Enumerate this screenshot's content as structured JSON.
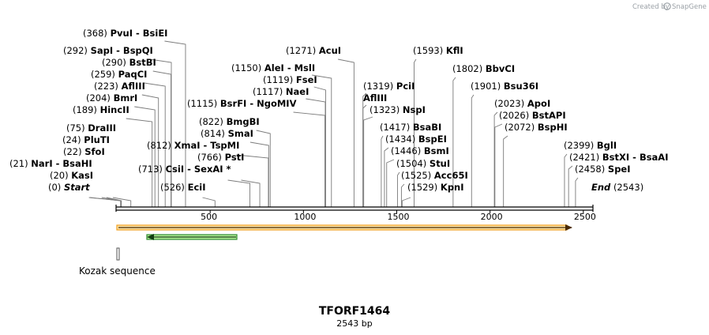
{
  "watermark": {
    "created_by": "Created by",
    "brand": "SnapGene"
  },
  "map": {
    "title": "TFORF1464",
    "length_label": "2543 bp",
    "length": 2543,
    "ticks": [
      {
        "label": "500",
        "value": 500
      },
      {
        "label": "1000",
        "value": 1000
      },
      {
        "label": "1500",
        "value": 1500
      },
      {
        "label": "2000",
        "value": 2000
      },
      {
        "label": "2500",
        "value": 2500
      }
    ]
  },
  "sites": [
    {
      "pos": "(0)",
      "names": "Start",
      "site": 0,
      "italic": true
    },
    {
      "pos": "(20)",
      "names": "KasI",
      "site": 20
    },
    {
      "pos": "(21)",
      "names": "NarI  -  BsaHI",
      "site": 21
    },
    {
      "pos": "(22)",
      "names": "SfoI",
      "site": 22
    },
    {
      "pos": "(24)",
      "names": "PluTI",
      "site": 24
    },
    {
      "pos": "(75)",
      "names": "DraIII",
      "site": 75
    },
    {
      "pos": "(189)",
      "names": "HincII",
      "site": 189
    },
    {
      "pos": "(204)",
      "names": "BmrI",
      "site": 204
    },
    {
      "pos": "(223)",
      "names": "AflIII",
      "site": 223
    },
    {
      "pos": "(259)",
      "names": "PaqCI",
      "site": 259
    },
    {
      "pos": "(290)",
      "names": "BstBI",
      "site": 290
    },
    {
      "pos": "(292)",
      "names": "SapI  -  BspQI",
      "site": 292
    },
    {
      "pos": "(368)",
      "names": "PvuI  -  BsiEI",
      "site": 368
    },
    {
      "pos": "(526)",
      "names": "EciI",
      "site": 526
    },
    {
      "pos": "(713)",
      "names": "CsiI  -  SexAI *",
      "site": 713
    },
    {
      "pos": "(766)",
      "names": "PstI",
      "site": 766
    },
    {
      "pos": "(812)",
      "names": "XmaI  -  TspMI",
      "site": 812
    },
    {
      "pos": "(814)",
      "names": "SmaI",
      "site": 814
    },
    {
      "pos": "(822)",
      "names": "BmgBI",
      "site": 822
    },
    {
      "pos": "(1115)",
      "names": "BsrFI  -  NgoMIV",
      "site": 1115
    },
    {
      "pos": "(1117)",
      "names": "NaeI",
      "site": 1117
    },
    {
      "pos": "(1119)",
      "names": "FseI",
      "site": 1119
    },
    {
      "pos": "(1150)",
      "names": "AleI  -  MslI",
      "site": 1150
    },
    {
      "pos": "(1271)",
      "names": "AcuI",
      "site": 1271
    },
    {
      "pos": "(1319)",
      "names": "PciI",
      "site": 1319
    },
    {
      "pos": "",
      "names": "AflIII",
      "site": 1319
    },
    {
      "pos": "(1323)",
      "names": "NspI",
      "site": 1323
    },
    {
      "pos": "(1417)",
      "names": "BsaBI",
      "site": 1417
    },
    {
      "pos": "(1434)",
      "names": "BspEI",
      "site": 1434
    },
    {
      "pos": "(1446)",
      "names": "BsmI",
      "site": 1446
    },
    {
      "pos": "(1504)",
      "names": "StuI",
      "site": 1504
    },
    {
      "pos": "(1525)",
      "names": "Acc65I",
      "site": 1525
    },
    {
      "pos": "(1529)",
      "names": "KpnI",
      "site": 1529
    },
    {
      "pos": "(1593)",
      "names": "KflI",
      "site": 1593
    },
    {
      "pos": "(1802)",
      "names": "BbvCI",
      "site": 1802
    },
    {
      "pos": "(1901)",
      "names": "Bsu36I",
      "site": 1901
    },
    {
      "pos": "(2023)",
      "names": "ApoI",
      "site": 2023
    },
    {
      "pos": "(2026)",
      "names": "BstAPI",
      "site": 2026
    },
    {
      "pos": "(2072)",
      "names": "BspHI",
      "site": 2072
    },
    {
      "pos": "(2399)",
      "names": "BglI",
      "site": 2399
    },
    {
      "pos": "(2421)",
      "names": "BstXI  -  BsaAI",
      "site": 2421
    },
    {
      "pos": "(2458)",
      "names": "SpeI",
      "site": 2458
    },
    {
      "pos": "(2543)",
      "names": "End",
      "site": 2543,
      "italic": true
    }
  ],
  "features": [
    {
      "name": "ORF",
      "start": 0,
      "end": 2543,
      "direction": "forward",
      "color": "#f4a020",
      "fill": "#fbe3a8"
    },
    {
      "name": "green-arrow",
      "start": 170,
      "end": 640,
      "direction": "reverse",
      "color": "#2e8b2e",
      "fill": "#b8ef9a"
    }
  ],
  "kozak": {
    "label": "Kozak sequence"
  }
}
